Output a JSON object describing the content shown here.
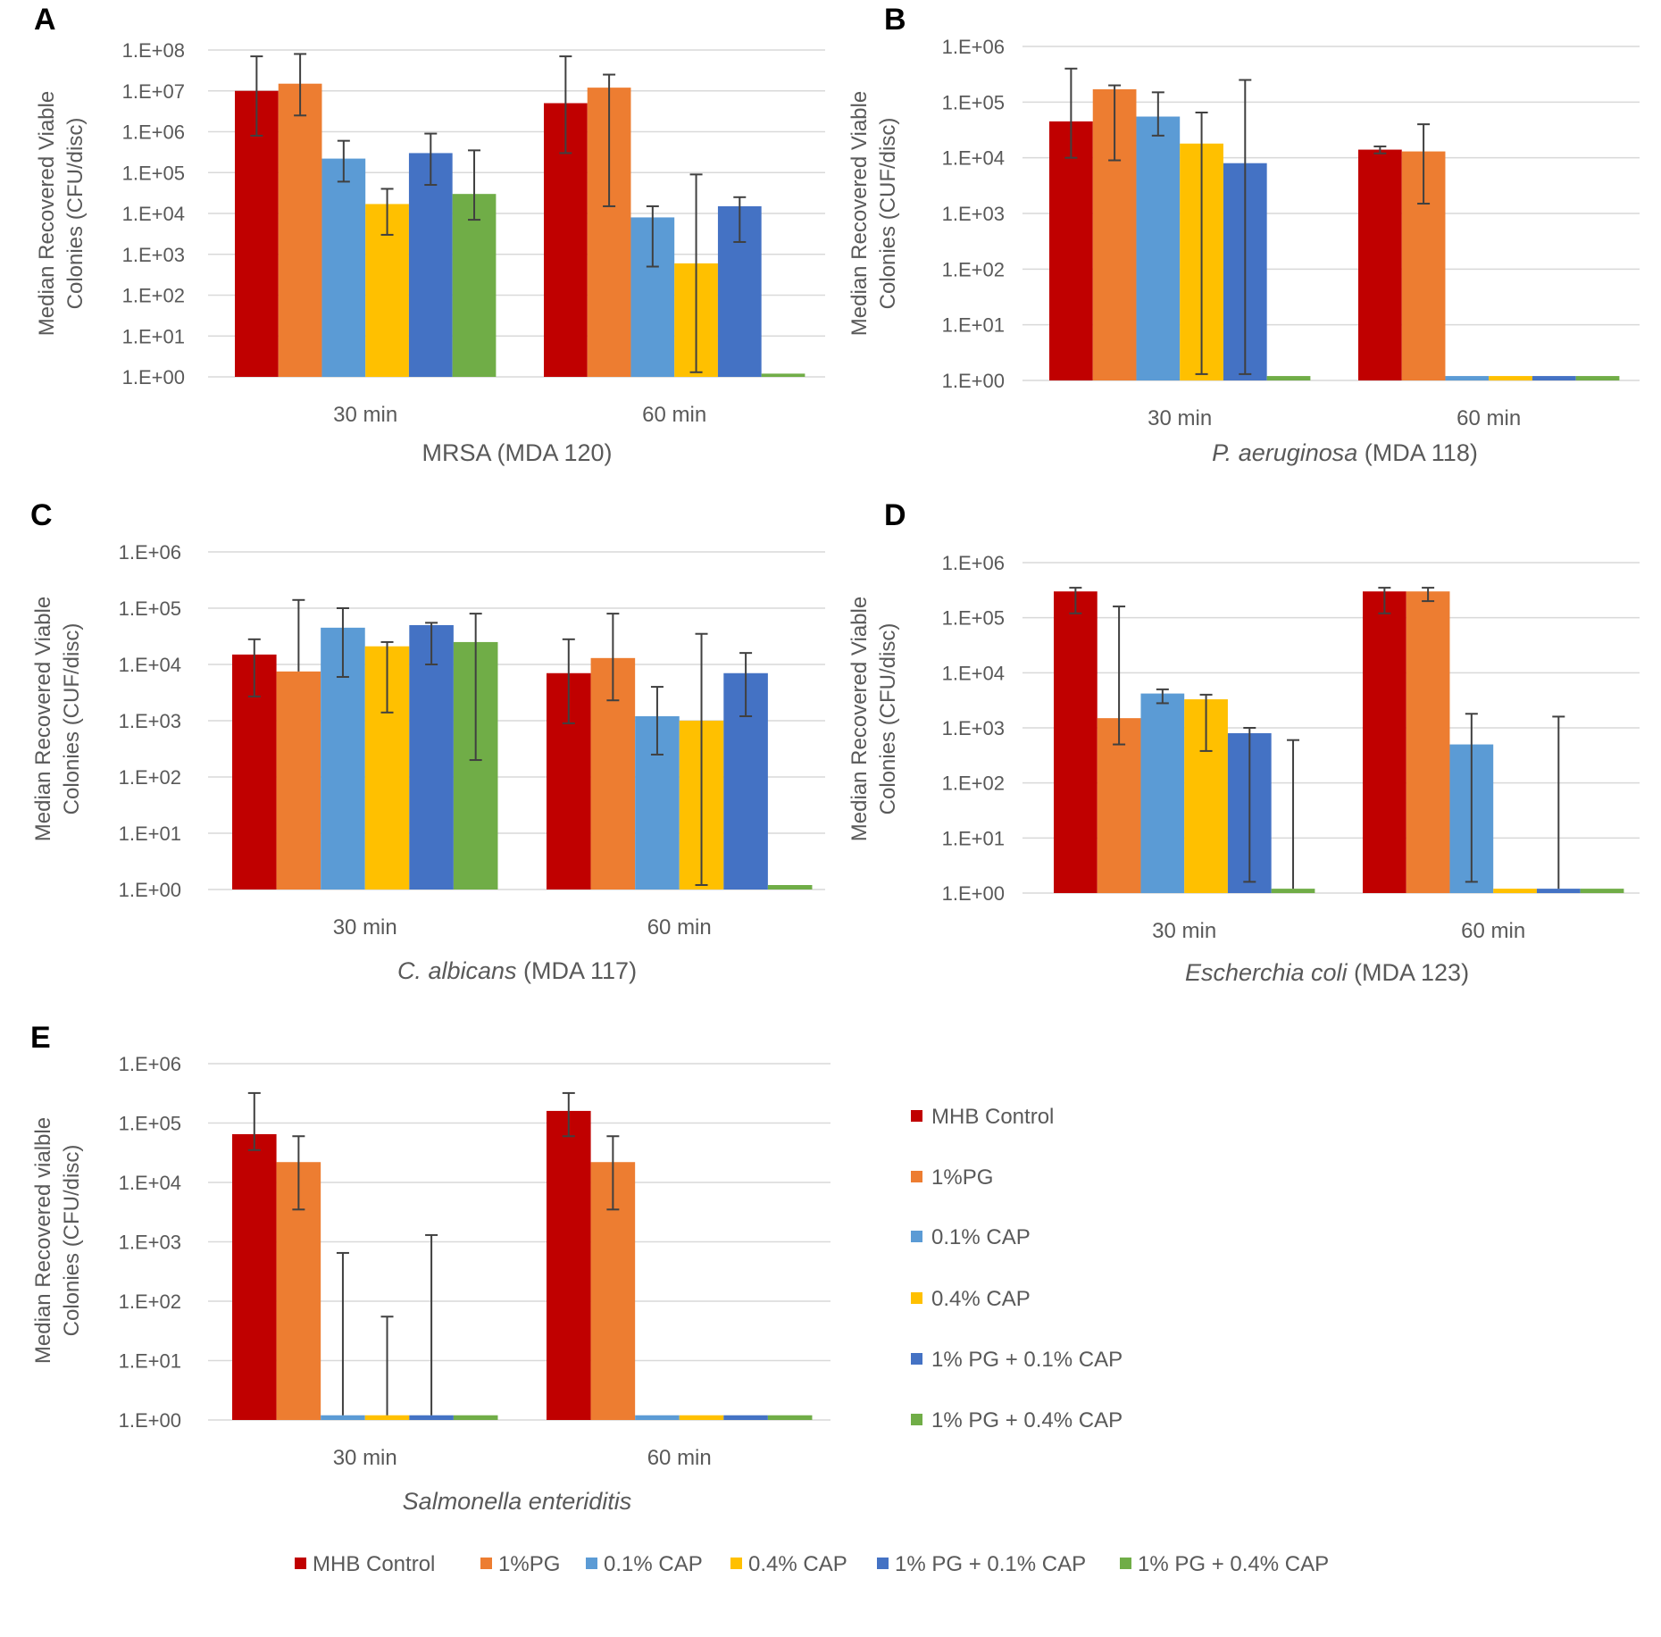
{
  "series_names": [
    "MHB Control",
    "1%PG",
    "0.1% CAP",
    "0.4% CAP",
    "1% PG + 0.1% CAP",
    "1% PG + 0.4% CAP"
  ],
  "series_colors": [
    "#C00000",
    "#ED7D31",
    "#5B9BD5",
    "#FFC000",
    "#4472C4",
    "#70AD47"
  ],
  "legend_side": {
    "items": [
      "MHB Control",
      "1%PG",
      "0.1% CAP",
      "0.4% CAP",
      "1% PG + 0.1% CAP",
      "1% PG + 0.4% CAP"
    ]
  },
  "legend_bottom": {
    "items": [
      "MHB Control",
      "1%PG",
      "0.1% CAP",
      "0.4% CAP",
      "1% PG + 0.1% CAP",
      "1% PG + 0.4% CAP"
    ]
  },
  "chart_data": [
    {
      "panel": "A",
      "type": "bar",
      "scale": "log",
      "ylim": [
        1,
        100000000
      ],
      "yticks": [
        "1.E+00",
        "1.E+01",
        "1.E+02",
        "1.E+03",
        "1.E+04",
        "1.E+05",
        "1.E+06",
        "1.E+07",
        "1.E+08"
      ],
      "ylabel": [
        "Median Recovered Viable",
        "Colonies (CFU/disc)"
      ],
      "categories": [
        "30 min",
        "60 min"
      ],
      "title_parts": [
        {
          "text": "MRSA (MDA 120)",
          "italic": false
        }
      ],
      "series": [
        {
          "name": "MHB Control",
          "values": [
            10000000,
            5000000
          ],
          "err_low": [
            800000,
            300000
          ],
          "err_high": [
            70000000,
            70000000
          ]
        },
        {
          "name": "1%PG",
          "values": [
            15000000,
            12000000
          ],
          "err_low": [
            2500000,
            15000
          ],
          "err_high": [
            80000000,
            25000000
          ]
        },
        {
          "name": "0.1% CAP",
          "values": [
            220000,
            8000
          ],
          "err_low": [
            60000,
            500
          ],
          "err_high": [
            600000,
            15000
          ]
        },
        {
          "name": "0.4% CAP",
          "values": [
            17000,
            600
          ],
          "err_low": [
            3000,
            1.3
          ],
          "err_high": [
            40000,
            90000
          ]
        },
        {
          "name": "1% PG + 0.1% CAP",
          "values": [
            300000,
            15000
          ],
          "err_low": [
            50000,
            2000
          ],
          "err_high": [
            900000,
            25000
          ]
        },
        {
          "name": "1% PG + 0.4% CAP",
          "values": [
            30000,
            1.2
          ],
          "err_low": [
            7000,
            null
          ],
          "err_high": [
            350000,
            null
          ]
        }
      ]
    },
    {
      "panel": "B",
      "type": "bar",
      "scale": "log",
      "ylim": [
        1,
        1000000
      ],
      "yticks": [
        "1.E+00",
        "1.E+01",
        "1.E+02",
        "1.E+03",
        "1.E+04",
        "1.E+05",
        "1.E+06"
      ],
      "ylabel": [
        "Median Recovered Viable",
        "Colonies (CUF/disc)"
      ],
      "categories": [
        "30 min",
        "60 min"
      ],
      "title_parts": [
        {
          "text": "P. aeruginosa",
          "italic": true
        },
        {
          "text": " (MDA 118)",
          "italic": false
        }
      ],
      "series": [
        {
          "name": "MHB Control",
          "values": [
            45000,
            14000
          ],
          "err_low": [
            10000,
            12000
          ],
          "err_high": [
            400000,
            16000
          ]
        },
        {
          "name": "1%PG",
          "values": [
            170000,
            13000
          ],
          "err_low": [
            9000,
            1500
          ],
          "err_high": [
            200000,
            40000
          ]
        },
        {
          "name": "0.1% CAP",
          "values": [
            55000,
            1.2
          ],
          "err_low": [
            25000,
            null
          ],
          "err_high": [
            150000,
            null
          ]
        },
        {
          "name": "0.4% CAP",
          "values": [
            18000,
            1.2
          ],
          "err_low": [
            1.3,
            null
          ],
          "err_high": [
            65000,
            null
          ]
        },
        {
          "name": "1% PG + 0.1% CAP",
          "values": [
            8000,
            1.2
          ],
          "err_low": [
            1.3,
            null
          ],
          "err_high": [
            250000,
            null
          ]
        },
        {
          "name": "1% PG + 0.4% CAP",
          "values": [
            1.2,
            1.2
          ],
          "err_low": [
            null,
            null
          ],
          "err_high": [
            null,
            null
          ]
        }
      ]
    },
    {
      "panel": "C",
      "type": "bar",
      "scale": "log",
      "ylim": [
        1,
        1000000
      ],
      "yticks": [
        "1.E+00",
        "1.E+01",
        "1.E+02",
        "1.E+03",
        "1.E+04",
        "1.E+05",
        "1.E+06"
      ],
      "ylabel": [
        "Median Recovered Viable",
        "Colonies (CUF/disc)"
      ],
      "categories": [
        "30 min",
        "60 min"
      ],
      "title_parts": [
        {
          "text": "C. albicans",
          "italic": true
        },
        {
          "text": " (MDA 117)",
          "italic": false
        }
      ],
      "series": [
        {
          "name": "MHB Control",
          "values": [
            15000,
            7000
          ],
          "err_low": [
            2700,
            900
          ],
          "err_high": [
            28000,
            28000
          ]
        },
        {
          "name": "1%PG",
          "values": [
            7500,
            13000
          ],
          "err_low": [
            null,
            2300
          ],
          "err_high": [
            140000,
            80000
          ]
        },
        {
          "name": "0.1% CAP",
          "values": [
            45000,
            1200
          ],
          "err_low": [
            6000,
            250
          ],
          "err_high": [
            100000,
            4000
          ]
        },
        {
          "name": "0.4% CAP",
          "values": [
            21000,
            1000
          ],
          "err_low": [
            1400,
            1.2
          ],
          "err_high": [
            25000,
            35000
          ]
        },
        {
          "name": "1% PG + 0.1% CAP",
          "values": [
            50000,
            7000
          ],
          "err_low": [
            10000,
            1200
          ],
          "err_high": [
            55000,
            16000
          ]
        },
        {
          "name": "1% PG + 0.4% CAP",
          "values": [
            25000,
            1.2
          ],
          "err_low": [
            200,
            null
          ],
          "err_high": [
            80000,
            null
          ]
        }
      ]
    },
    {
      "panel": "D",
      "type": "bar",
      "scale": "log",
      "ylim": [
        1,
        1000000
      ],
      "yticks": [
        "1.E+00",
        "1.E+01",
        "1.E+02",
        "1.E+03",
        "1.E+04",
        "1.E+05",
        "1.E+06"
      ],
      "ylabel": [
        "Median Recovered Viable",
        "Colonies (CFU/disc)"
      ],
      "categories": [
        "30 min",
        "60 min"
      ],
      "title_parts": [
        {
          "text": "Escherchia coli",
          "italic": true
        },
        {
          "text": " (MDA 123)",
          "italic": false
        }
      ],
      "series": [
        {
          "name": "MHB Control",
          "values": [
            300000,
            300000
          ],
          "err_low": [
            120000,
            120000
          ],
          "err_high": [
            350000,
            350000
          ]
        },
        {
          "name": "1%PG",
          "values": [
            1500,
            300000
          ],
          "err_low": [
            500,
            200000
          ],
          "err_high": [
            160000,
            350000
          ]
        },
        {
          "name": "0.1% CAP",
          "values": [
            4200,
            500
          ],
          "err_low": [
            2800,
            1.6
          ],
          "err_high": [
            5000,
            1800
          ]
        },
        {
          "name": "0.4% CAP",
          "values": [
            3300,
            1.2
          ],
          "err_low": [
            380,
            null
          ],
          "err_high": [
            4000,
            null
          ]
        },
        {
          "name": "1% PG + 0.1% CAP",
          "values": [
            800,
            1.2
          ],
          "err_low": [
            1.6,
            null
          ],
          "err_high": [
            1000,
            1600
          ]
        },
        {
          "name": "1% PG + 0.4% CAP",
          "values": [
            1.2,
            1.2
          ],
          "err_low": [
            null,
            null
          ],
          "err_high": [
            600,
            null
          ]
        }
      ]
    },
    {
      "panel": "E",
      "type": "bar",
      "scale": "log",
      "ylim": [
        1,
        1000000
      ],
      "yticks": [
        "1.E+00",
        "1.E+01",
        "1.E+02",
        "1.E+03",
        "1.E+04",
        "1.E+05",
        "1.E+06"
      ],
      "ylabel": [
        "Median Recovered vialble",
        "Colonies  (CFU/disc)"
      ],
      "categories": [
        "30 min",
        "60 min"
      ],
      "title_parts": [
        {
          "text": "Salmonella enteriditis",
          "italic": true
        }
      ],
      "series": [
        {
          "name": "MHB Control",
          "values": [
            65000,
            160000
          ],
          "err_low": [
            35000,
            60000
          ],
          "err_high": [
            320000,
            320000
          ]
        },
        {
          "name": "1%PG",
          "values": [
            22000,
            22000
          ],
          "err_low": [
            3500,
            3500
          ],
          "err_high": [
            60000,
            60000
          ]
        },
        {
          "name": "0.1% CAP",
          "values": [
            1.2,
            1.2
          ],
          "err_low": [
            null,
            null
          ],
          "err_high": [
            650,
            null
          ]
        },
        {
          "name": "0.4% CAP",
          "values": [
            1.2,
            1.2
          ],
          "err_low": [
            null,
            null
          ],
          "err_high": [
            55,
            null
          ]
        },
        {
          "name": "1% PG + 0.1% CAP",
          "values": [
            1.2,
            1.2
          ],
          "err_low": [
            null,
            null
          ],
          "err_high": [
            1300,
            null
          ]
        },
        {
          "name": "1% PG + 0.4% CAP",
          "values": [
            1.2,
            1.2
          ],
          "err_low": [
            null,
            null
          ],
          "err_high": [
            null,
            null
          ]
        }
      ]
    }
  ]
}
